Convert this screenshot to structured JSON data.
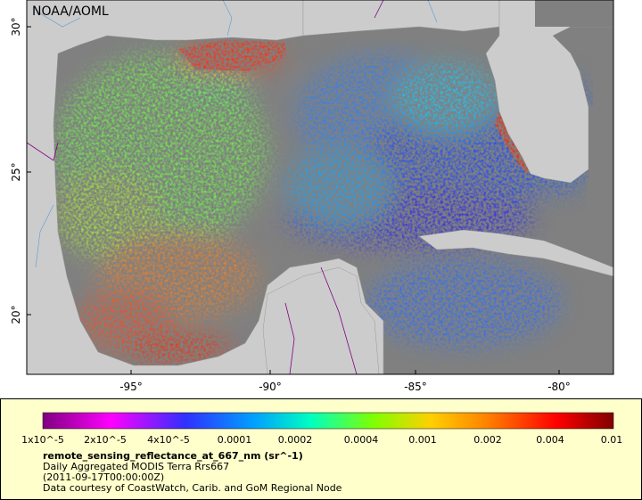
{
  "header": {
    "credit": "NOAA/AOML"
  },
  "map": {
    "lat_labels": [
      "30°",
      "25°",
      "20°"
    ],
    "lon_labels": [
      "-95°",
      "-90°",
      "-85°",
      "-80°"
    ]
  },
  "legend": {
    "scale_labels": [
      "1x10^-5",
      "2x10^-5",
      "4x10^-5",
      "0.0001",
      "0.0002",
      "0.0004",
      "0.001",
      "0.002",
      "0.004",
      "0.01"
    ],
    "variable": "remote_sensing_reflectance_at_667_nm (sr^-1)",
    "description": "Daily Aggregated MODIS Terra Rrs667",
    "time": "(2011-09-17T00:00:00Z)",
    "courtesy": "Data courtesy of CoastWatch, Carib. and GoM Regional Node"
  }
}
